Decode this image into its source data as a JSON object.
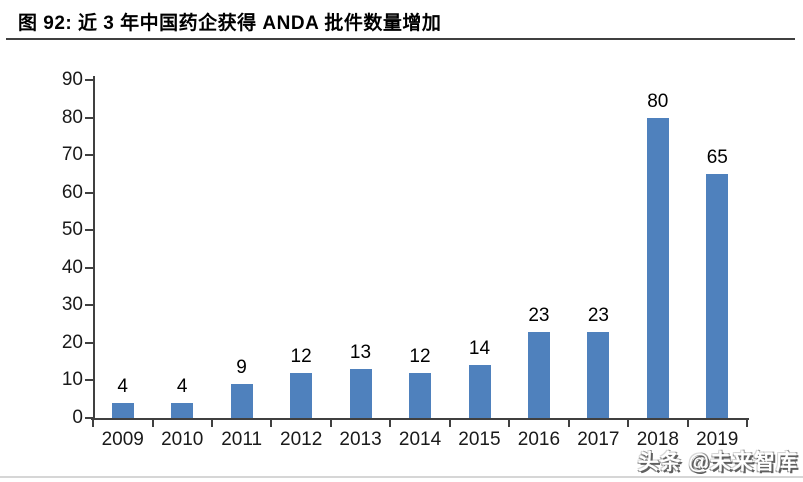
{
  "title": "图 92:  近 3 年中国药企获得 ANDA 批件数量增加",
  "watermark": "头条 @未来智库",
  "colors": {
    "bar": "#4F81BD",
    "axis": "#404040",
    "text": "#000000",
    "bottom_rule": "#D6D6D6"
  },
  "chart_data": {
    "type": "bar",
    "title": "近 3 年中国药企获得 ANDA 批件数量增加",
    "categories": [
      "2009",
      "2010",
      "2011",
      "2012",
      "2013",
      "2014",
      "2015",
      "2016",
      "2017",
      "2018",
      "2019"
    ],
    "values": [
      4,
      4,
      9,
      12,
      13,
      12,
      14,
      23,
      23,
      80,
      65
    ],
    "xlabel": "",
    "ylabel": "",
    "ylim": [
      0,
      90
    ],
    "ytick_step": 10,
    "yticks": [
      0,
      10,
      20,
      30,
      40,
      50,
      60,
      70,
      80,
      90
    ],
    "grid": false,
    "legend": "none",
    "data_labels": true,
    "bar_color": "#4F81BD"
  }
}
